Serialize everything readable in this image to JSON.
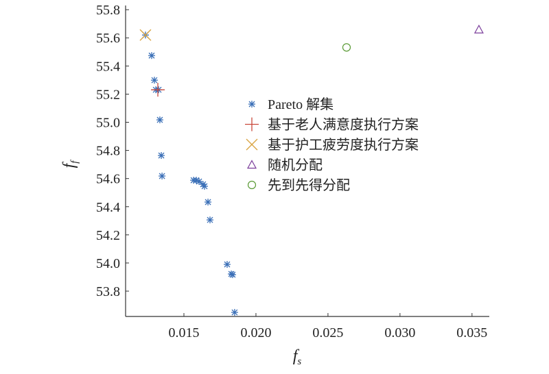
{
  "chart_data": {
    "type": "scatter",
    "xlabel": {
      "text": "f",
      "subscript": "s"
    },
    "ylabel": {
      "text": "f",
      "subscript": "f"
    },
    "xlim": [
      0.01095,
      0.0362
    ],
    "ylim": [
      53.62,
      55.83
    ],
    "xticks": [
      0.015,
      {
        "value": 0.02,
        "label": "0.020"
      },
      0.025,
      {
        "value": 0.03,
        "label": "0.030"
      },
      0.035
    ],
    "yticks": [
      53.8,
      {
        "value": 54,
        "label": "54.0"
      },
      54.2,
      54.4,
      54.6,
      54.8,
      {
        "value": 55,
        "label": "55.0"
      },
      55.2,
      55.4,
      55.6,
      55.8
    ],
    "series": [
      {
        "name": "Pareto 解集",
        "color": "#3a6fb7",
        "marker": "asterisk",
        "x": [
          0.01233,
          0.01276,
          0.01295,
          0.01305,
          0.01324,
          0.01333,
          0.01343,
          0.01348,
          0.01567,
          0.01586,
          0.01605,
          0.01633,
          0.01643,
          0.01667,
          0.01681,
          0.018,
          0.01829,
          0.01838,
          0.01852
        ],
        "values": [
          55.62,
          55.474,
          55.299,
          55.231,
          55.231,
          55.017,
          54.764,
          54.618,
          54.588,
          54.588,
          54.579,
          54.559,
          54.545,
          54.433,
          54.306,
          53.99,
          53.922,
          53.917,
          53.649
        ]
      },
      {
        "name": "基于老人满意度执行方案",
        "color": "#c8473a",
        "marker": "plus",
        "x": [
          0.01319
        ],
        "values": [
          55.231
        ]
      },
      {
        "name": "基于护工疲劳度执行方案",
        "color": "#d9a441",
        "marker": "cross",
        "x": [
          0.01233
        ],
        "values": [
          55.62
        ]
      },
      {
        "name": "随机分配",
        "color": "#7a3c9a",
        "marker": "triangle",
        "x": [
          0.03548
        ],
        "values": [
          55.659
        ]
      },
      {
        "name": "先到先得分配",
        "color": "#5a9a35",
        "marker": "circle",
        "x": [
          0.02629
        ],
        "values": [
          55.532
        ]
      }
    ]
  }
}
